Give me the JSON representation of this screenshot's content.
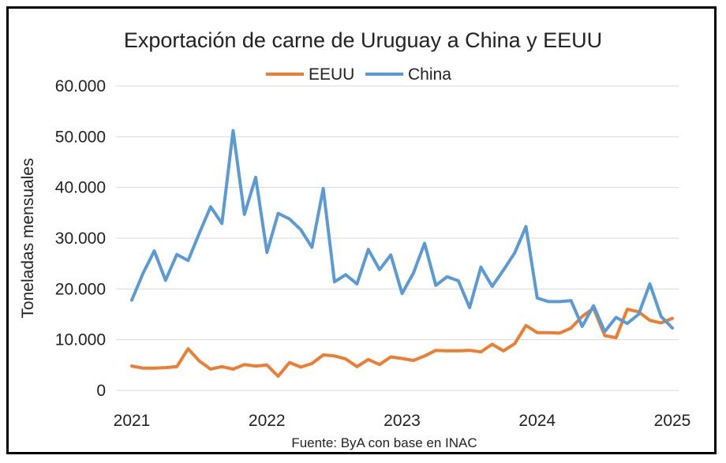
{
  "chart_data": {
    "type": "line",
    "title": "Exportación de carne de Uruguay a China y EEUU",
    "ylabel": "Toneladas mensuales",
    "xlabel": "",
    "source": "Fuente: ByA con base en INAC",
    "ylim": [
      0,
      60000
    ],
    "y_ticks": [
      "0",
      "10.000",
      "20.000",
      "30.000",
      "40.000",
      "50.000",
      "60.000"
    ],
    "x_ticks": [
      "2021",
      "2022",
      "2023",
      "2024",
      "2025"
    ],
    "grid": true,
    "legend_position": "top-center",
    "series": [
      {
        "name": "EEUU",
        "color": "#ED7D31",
        "values": [
          4800,
          4400,
          4400,
          4500,
          4700,
          8200,
          5800,
          4200,
          4700,
          4200,
          5100,
          4800,
          5000,
          2800,
          5500,
          4600,
          5300,
          7000,
          6800,
          6200,
          4700,
          6100,
          5100,
          6600,
          6300,
          5900,
          6800,
          7900,
          7800,
          7800,
          7900,
          7600,
          9100,
          7800,
          9200,
          12800,
          11400,
          11400,
          11300,
          12300,
          14600,
          16200,
          10800,
          10400,
          16000,
          15500,
          13800,
          13300,
          14200
        ]
      },
      {
        "name": "China",
        "color": "#5B9BD5",
        "values": [
          17800,
          23100,
          27500,
          21700,
          26800,
          25600,
          31000,
          36200,
          32900,
          51200,
          34700,
          42000,
          27200,
          34900,
          33800,
          31700,
          28200,
          39800,
          21400,
          22800,
          21000,
          27800,
          23800,
          26700,
          19100,
          23100,
          29000,
          20700,
          22400,
          21600,
          16300,
          24300,
          20500,
          23700,
          27100,
          32300,
          18200,
          17500,
          17500,
          17700,
          12600,
          16700,
          11600,
          14400,
          13200,
          15000,
          21000,
          14600,
          12300
        ]
      }
    ]
  }
}
